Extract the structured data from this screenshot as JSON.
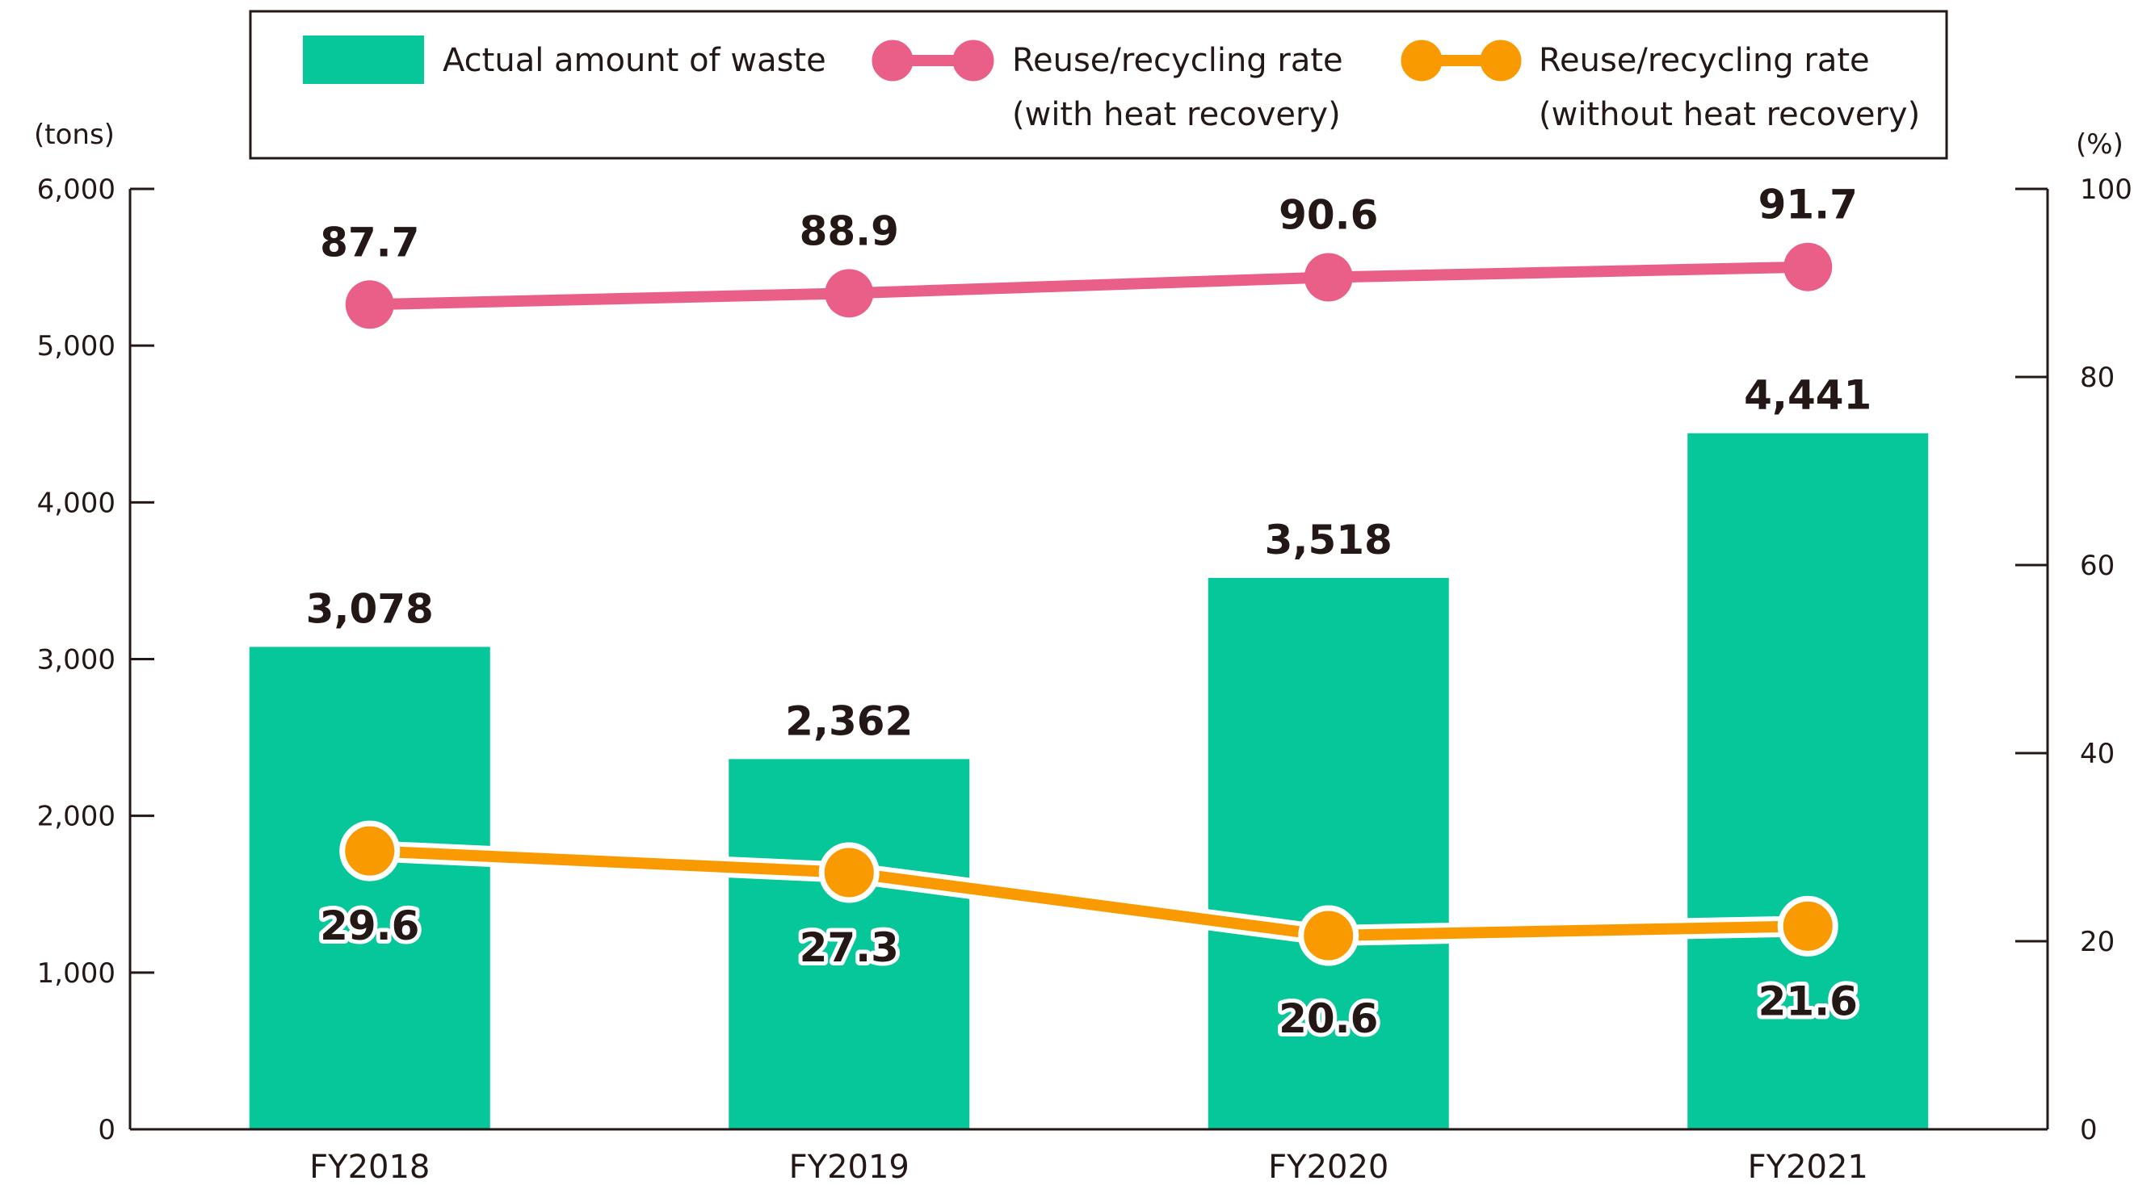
{
  "chart_data": {
    "type": "bar",
    "categories": [
      "FY2018",
      "FY2019",
      "FY2020",
      "FY2021"
    ],
    "left_axis": {
      "unit": "(tons)",
      "ylim": [
        0,
        6000
      ],
      "ticks": [
        0,
        1000,
        2000,
        3000,
        4000,
        5000,
        6000
      ],
      "tick_labels": [
        "0",
        "1,000",
        "2,000",
        "3,000",
        "4,000",
        "5,000",
        "6,000"
      ]
    },
    "right_axis": {
      "unit": "(%)",
      "ylim": [
        0,
        100
      ],
      "ticks": [
        0,
        20,
        40,
        60,
        80,
        100
      ],
      "tick_labels": [
        "0",
        "20",
        "40",
        "60",
        "80",
        "100"
      ]
    },
    "series": [
      {
        "name": "Actual amount of waste",
        "type": "bar",
        "axis": "left",
        "values": [
          3078,
          2362,
          3518,
          4441
        ],
        "labels": [
          "3,078",
          "2,362",
          "3,518",
          "4,441"
        ],
        "color": "#05C79A"
      },
      {
        "name": "Reuse/recycling rate",
        "name_line2": "(with heat recovery)",
        "type": "line",
        "axis": "right",
        "values": [
          87.7,
          88.9,
          90.6,
          91.7
        ],
        "labels": [
          "87.7",
          "88.9",
          "90.6",
          "91.7"
        ],
        "color": "#EA5F87"
      },
      {
        "name": "Reuse/recycling rate",
        "name_line2": "(without heat recovery)",
        "type": "line",
        "axis": "right",
        "values": [
          29.6,
          27.3,
          20.6,
          21.6
        ],
        "labels": [
          "29.6",
          "27.3",
          "20.6",
          "21.6"
        ],
        "color": "#F99B00"
      }
    ],
    "legend": "top",
    "grid": false
  }
}
